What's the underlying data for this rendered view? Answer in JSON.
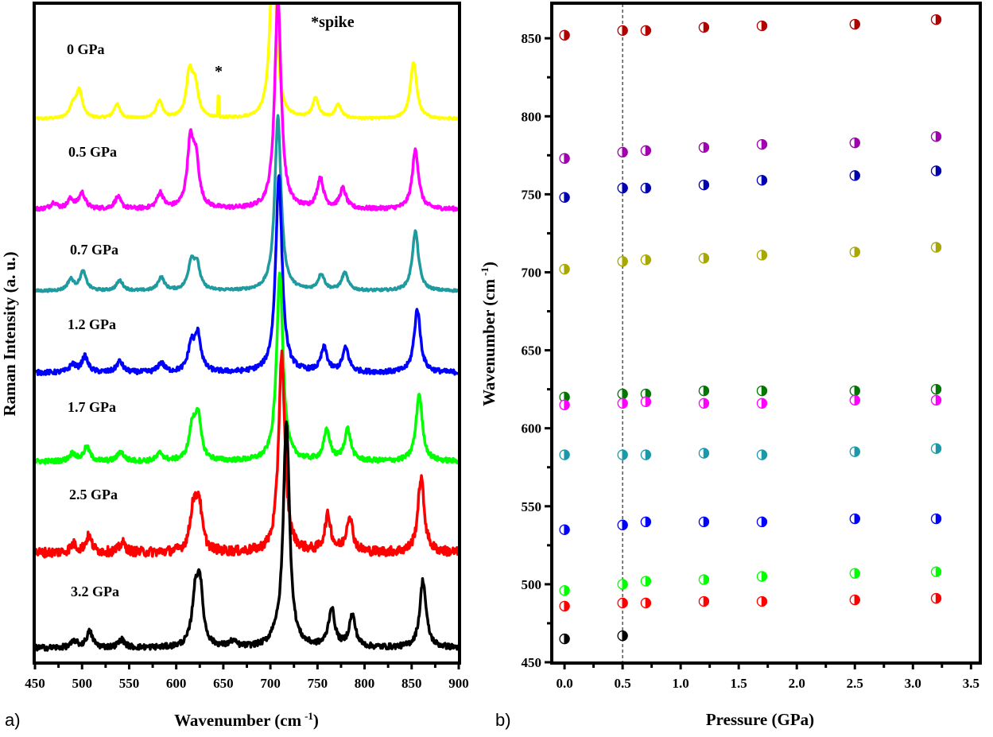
{
  "chart_data": [
    {
      "type": "line",
      "panel_label": "a)",
      "xlabel": {
        "text": "Wavenumber (cm",
        "sup": "-1",
        "close": ")"
      },
      "ylabel": "Raman Intensity (a. u.)",
      "xlim": [
        450,
        900
      ],
      "ylim": [
        0,
        8.3
      ],
      "x_ticks": [
        "450",
        "500",
        "550",
        "600",
        "650",
        "700",
        "750",
        "800",
        "850",
        "900"
      ],
      "y_ticks": [],
      "grid": false,
      "legend": "none",
      "annotations": [
        {
          "text": "*spike",
          "x": 760,
          "y_au": 8.05
        },
        {
          "text": "*",
          "x": 645,
          "y_au": 7.42
        }
      ],
      "series": [
        {
          "name": "0 GPa",
          "color": "#ffff00",
          "offset": 6.85,
          "noise": 0.012,
          "peaks": [
            [
              490,
              0.15
            ],
            [
              497,
              0.35
            ],
            [
              537,
              0.18
            ],
            [
              582,
              0.22
            ],
            [
              614,
              0.55
            ],
            [
              620,
              0.38
            ],
            [
              703,
              2.2
            ],
            [
              748,
              0.25
            ],
            [
              772,
              0.17
            ],
            [
              852,
              0.72
            ]
          ],
          "spike": [
            645,
            0.25
          ]
        },
        {
          "name": "0.5 GPa",
          "color": "#ff00ff",
          "offset": 5.71,
          "noise": 0.025,
          "peaks": [
            [
              470,
              0.08
            ],
            [
              488,
              0.12
            ],
            [
              500,
              0.2
            ],
            [
              538,
              0.15
            ],
            [
              583,
              0.2
            ],
            [
              615,
              0.8
            ],
            [
              621,
              0.55
            ],
            [
              708,
              2.7
            ],
            [
              753,
              0.38
            ],
            [
              777,
              0.25
            ],
            [
              854,
              0.75
            ]
          ]
        },
        {
          "name": "0.7 GPa",
          "color": "#1f9ba0",
          "offset": 4.68,
          "noise": 0.015,
          "peaks": [
            [
              488,
              0.14
            ],
            [
              501,
              0.24
            ],
            [
              540,
              0.13
            ],
            [
              584,
              0.17
            ],
            [
              616,
              0.34
            ],
            [
              622,
              0.3
            ],
            [
              708,
              2.2
            ],
            [
              754,
              0.2
            ],
            [
              779,
              0.22
            ],
            [
              854,
              0.75
            ]
          ]
        },
        {
          "name": "1.2 GPa",
          "color": "#0000ff",
          "offset": 3.65,
          "noise": 0.03,
          "peaks": [
            [
              490,
              0.1
            ],
            [
              503,
              0.2
            ],
            [
              540,
              0.14
            ],
            [
              584,
              0.12
            ],
            [
              616,
              0.33
            ],
            [
              623,
              0.45
            ],
            [
              709,
              2.5
            ],
            [
              757,
              0.3
            ],
            [
              780,
              0.3
            ],
            [
              856,
              0.8
            ]
          ]
        },
        {
          "name": "1.7 GPa",
          "color": "#00ff00",
          "offset": 2.53,
          "noise": 0.03,
          "peaks": [
            [
              490,
              0.1
            ],
            [
              505,
              0.18
            ],
            [
              541,
              0.12
            ],
            [
              583,
              0.1
            ],
            [
              617,
              0.38
            ],
            [
              623,
              0.55
            ],
            [
              710,
              2.4
            ],
            [
              760,
              0.38
            ],
            [
              782,
              0.4
            ],
            [
              858,
              0.85
            ]
          ]
        },
        {
          "name": "2.5 GPa",
          "color": "#ff0000",
          "offset": 1.38,
          "noise": 0.06,
          "peaks": [
            [
              491,
              0.1
            ],
            [
              507,
              0.2
            ],
            [
              543,
              0.12
            ],
            [
              618,
              0.5
            ],
            [
              624,
              0.6
            ],
            [
              712,
              2.5
            ],
            [
              761,
              0.45
            ],
            [
              784,
              0.45
            ],
            [
              860,
              0.95
            ]
          ]
        },
        {
          "name": "3.2 GPa",
          "color": "#000000",
          "offset": 0.18,
          "noise": 0.035,
          "peaks": [
            [
              492,
              0.08
            ],
            [
              508,
              0.2
            ],
            [
              542,
              0.1
            ],
            [
              620,
              0.55
            ],
            [
              625,
              0.75
            ],
            [
              660,
              0.07
            ],
            [
              704,
              0.08
            ],
            [
              717,
              2.85
            ],
            [
              765,
              0.48
            ],
            [
              787,
              0.4
            ],
            [
              862,
              0.85
            ]
          ]
        }
      ]
    },
    {
      "type": "scatter",
      "panel_label": "b)",
      "xlabel": "Pressure (GPa)",
      "ylabel": {
        "text": "Wavenumber (cm",
        "sup": "-1",
        "close": ")"
      },
      "xlim": [
        -0.11,
        3.58
      ],
      "ylim": [
        450,
        872
      ],
      "x_ticks": [
        "0.0",
        "0.5",
        "1.0",
        "1.5",
        "2.0",
        "2.5",
        "3.0",
        "3.5"
      ],
      "y_ticks": [
        "450",
        "500",
        "550",
        "600",
        "650",
        "700",
        "750",
        "800",
        "850"
      ],
      "grid": false,
      "legend": "none",
      "marker": "half-filled-circle",
      "reference_line": {
        "x": 0.5,
        "style": "dashed"
      },
      "x": [
        0,
        0.5,
        0.7,
        1.2,
        1.7,
        2.5,
        3.2
      ],
      "series": [
        {
          "color": "#b00000",
          "values": [
            852,
            855,
            855,
            857,
            858,
            859,
            862
          ]
        },
        {
          "color": "#a000b0",
          "values": [
            773,
            777,
            778,
            780,
            782,
            783,
            787
          ]
        },
        {
          "color": "#0000b0",
          "values": [
            748,
            754,
            754,
            756,
            759,
            762,
            765
          ]
        },
        {
          "color": "#a8a800",
          "values": [
            702,
            707,
            708,
            709,
            711,
            713,
            716
          ]
        },
        {
          "color": "#007800",
          "values": [
            620,
            622,
            622,
            624,
            624,
            624,
            625
          ]
        },
        {
          "color": "#ff00ff",
          "values": [
            615,
            616,
            617,
            616,
            616,
            618,
            618
          ]
        },
        {
          "color": "#1a9aa8",
          "values": [
            583,
            583,
            583,
            584,
            583,
            585,
            587
          ]
        },
        {
          "color": "#0000ff",
          "values": [
            535,
            538,
            540,
            540,
            540,
            542,
            542
          ]
        },
        {
          "color": "#00ff00",
          "values": [
            496,
            500,
            502,
            503,
            505,
            507,
            508
          ]
        },
        {
          "color": "#ff0000",
          "values": [
            486,
            488,
            488,
            489,
            489,
            490,
            491
          ]
        },
        {
          "color": "#000000",
          "values": [
            465,
            467,
            null,
            null,
            null,
            null,
            null
          ]
        }
      ]
    }
  ]
}
